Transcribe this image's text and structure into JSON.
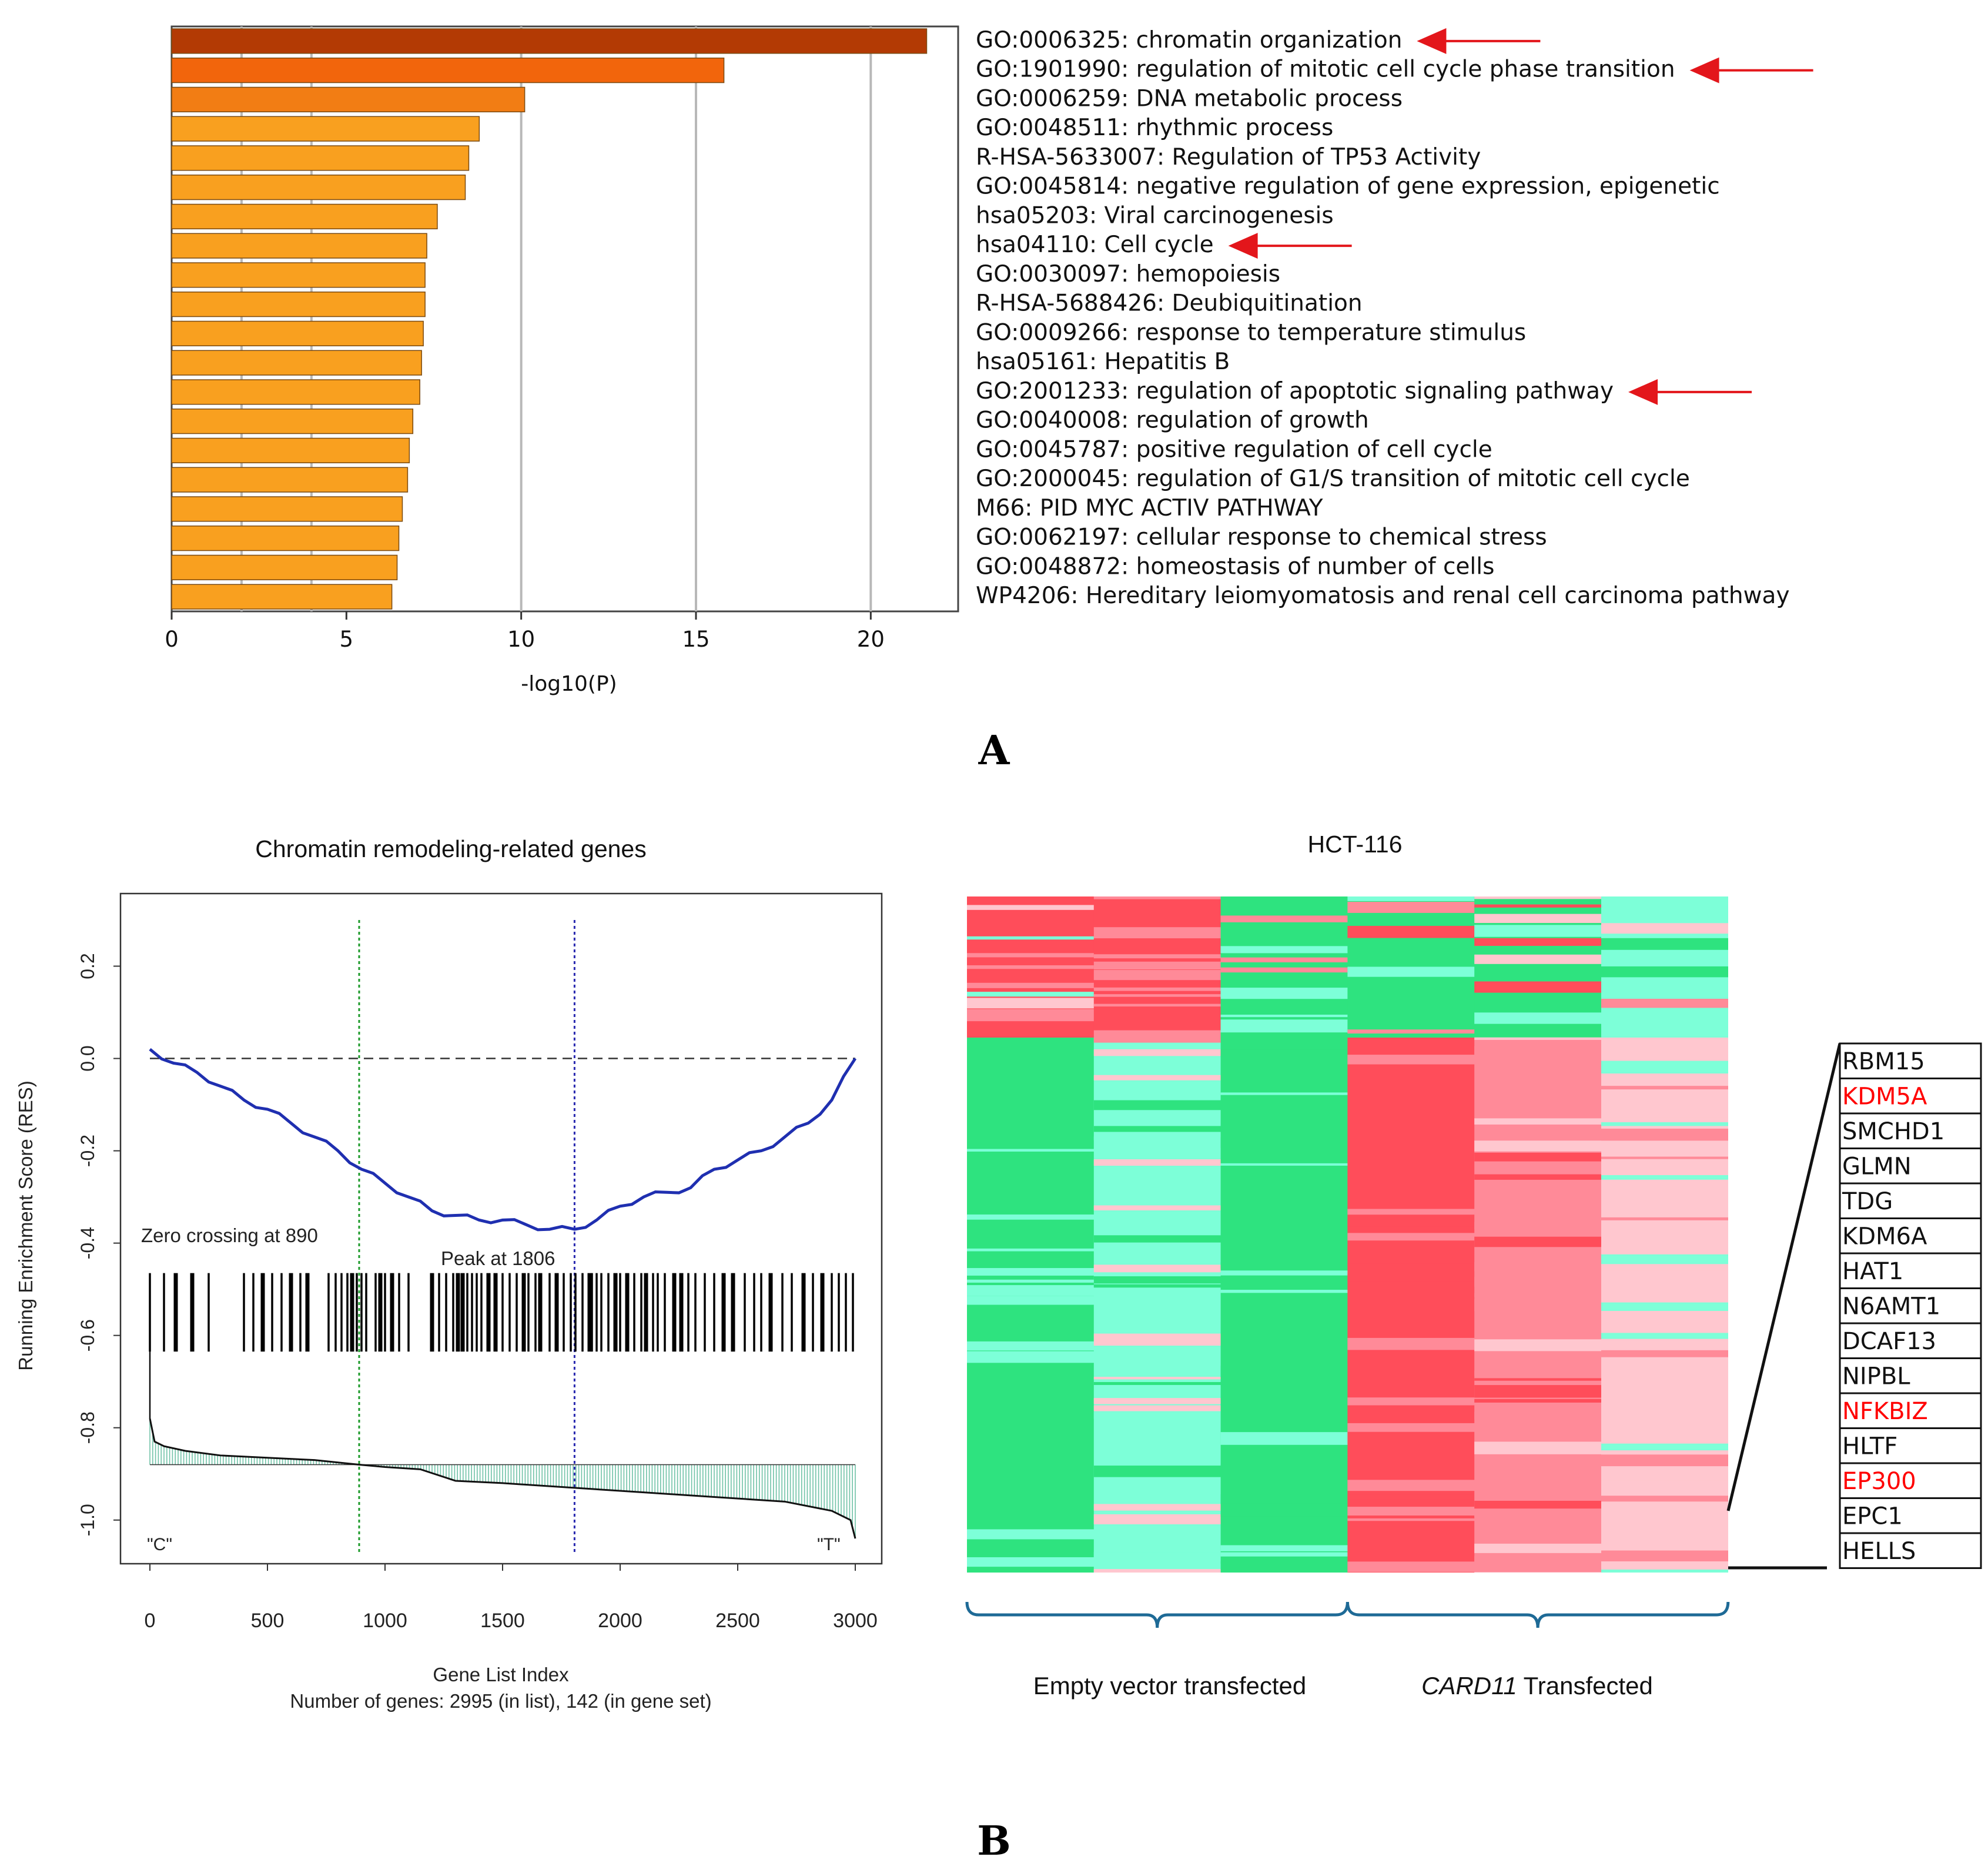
{
  "panel_labels": {
    "a": "A",
    "b": "B"
  },
  "chart_data": [
    {
      "type": "bar",
      "orientation": "horizontal",
      "title": "",
      "xlabel": "-log10(P)",
      "xlim": [
        0,
        22.5
      ],
      "xticks": [
        0,
        5,
        10,
        15,
        20
      ],
      "grid": "vertical",
      "categories": [
        "GO:0006325: chromatin organization",
        "GO:1901990: regulation of mitotic cell cycle phase transition",
        "GO:0006259: DNA metabolic process",
        "GO:0048511: rhythmic process",
        "R-HSA-5633007: Regulation of TP53 Activity",
        "GO:0045814: negative regulation of gene expression, epigenetic",
        "hsa05203: Viral carcinogenesis",
        "hsa04110: Cell cycle",
        "GO:0030097: hemopoiesis",
        "R-HSA-5688426: Deubiquitination",
        "GO:0009266: response to temperature stimulus",
        "hsa05161: Hepatitis B",
        "GO:2001233: regulation of apoptotic signaling pathway",
        "GO:0040008: regulation of growth",
        "GO:0045787: positive regulation of cell cycle",
        "GO:2000045: regulation of G1/S transition of mitotic cell cycle",
        "M66: PID MYC ACTIV PATHWAY",
        "GO:0062197: cellular response to chemical stress",
        "GO:0048872: homeostasis of number of cells",
        "WP4206: Hereditary leiomyomatosis and renal cell carcinoma pathway"
      ],
      "values": [
        21.6,
        15.8,
        10.1,
        8.8,
        8.5,
        8.4,
        7.6,
        7.3,
        7.25,
        7.25,
        7.2,
        7.15,
        7.1,
        6.9,
        6.8,
        6.75,
        6.6,
        6.5,
        6.45,
        6.3
      ],
      "bar_colors": [
        "#b33a04",
        "#f2650c",
        "#f27d14",
        "#f9a01f",
        "#f9a01f",
        "#f9a01f",
        "#f9a01f",
        "#f9a01f",
        "#f9a01f",
        "#f9a01f",
        "#f9a01f",
        "#f9a01f",
        "#f9a01f",
        "#f9a01f",
        "#f9a01f",
        "#f9a01f",
        "#f9a01f",
        "#f9a01f",
        "#f9a01f",
        "#f9a01f"
      ],
      "arrows_on": [
        0,
        1,
        7,
        12
      ],
      "arrow_color": "#e3161b"
    },
    {
      "type": "line",
      "title": "Chromatin remodeling-related genes",
      "xlabel": "Gene List Index",
      "ylabel": "Running Enrichment Score (RES)",
      "note": "Number of genes: 2995 (in list), 142 (in gene set)",
      "xlim": [
        0,
        3000
      ],
      "ylim": [
        -1.05,
        0.3
      ],
      "xticks": [
        0,
        500,
        1000,
        1500,
        2000,
        2500,
        3000
      ],
      "yticks": [
        0.2,
        0.0,
        -0.2,
        -0.4,
        -0.6,
        -0.8,
        -1.0
      ],
      "ytick_labels": [
        "0.2",
        "0.0",
        "-0.2",
        "-0.4",
        "-0.6",
        "-0.8",
        "-1.0"
      ],
      "annotations": {
        "zero_crossing": "Zero crossing at 890",
        "peak": "Peak at 1806",
        "left_end": "\"C\"",
        "right_end": "\"T\""
      },
      "zero_crossing_x": 890,
      "peak_x": 1806,
      "res_curve": {
        "x": [
          0,
          100,
          200,
          300,
          400,
          500,
          600,
          700,
          800,
          900,
          1000,
          1100,
          1200,
          1300,
          1400,
          1500,
          1600,
          1700,
          1806,
          1900,
          2000,
          2100,
          2200,
          2300,
          2400,
          2500,
          2600,
          2700,
          2800,
          2900,
          3000
        ],
        "y": [
          0.02,
          -0.01,
          -0.03,
          -0.06,
          -0.09,
          -0.11,
          -0.14,
          -0.17,
          -0.2,
          -0.24,
          -0.27,
          -0.3,
          -0.33,
          -0.34,
          -0.35,
          -0.35,
          -0.36,
          -0.37,
          -0.37,
          -0.35,
          -0.32,
          -0.3,
          -0.29,
          -0.28,
          -0.24,
          -0.22,
          -0.2,
          -0.17,
          -0.14,
          -0.09,
          0.0
        ]
      },
      "gene_set_hits": [
        0,
        60,
        110,
        180,
        250,
        400,
        440,
        480,
        520,
        560,
        600,
        640,
        670,
        760,
        790,
        815,
        840,
        860,
        880,
        900,
        920,
        960,
        980,
        1000,
        1030,
        1060,
        1100,
        1200,
        1230,
        1260,
        1290,
        1310,
        1330,
        1350,
        1370,
        1390,
        1410,
        1440,
        1470,
        1500,
        1530,
        1560,
        1590,
        1610,
        1640,
        1660,
        1700,
        1730,
        1760,
        1790,
        1810,
        1840,
        1870,
        1880,
        1900,
        1920,
        1950,
        1980,
        2000,
        2030,
        2060,
        2090,
        2110,
        2140,
        2160,
        2190,
        2230,
        2260,
        2290,
        2320,
        2360,
        2400,
        2440,
        2480,
        2530,
        2570,
        2600,
        2640,
        2690,
        2730,
        2780,
        2820,
        2860,
        2900,
        2930,
        2960,
        2990
      ],
      "ranked_metric": {
        "x": [
          0,
          20,
          60,
          150,
          300,
          500,
          700,
          890,
          1000,
          1150,
          1300,
          1500,
          1800,
          2100,
          2400,
          2700,
          2900,
          2980,
          3000
        ],
        "y": [
          -0.78,
          -0.83,
          -0.84,
          -0.85,
          -0.86,
          -0.865,
          -0.87,
          -0.88,
          -0.885,
          -0.89,
          -0.915,
          -0.92,
          -0.93,
          -0.94,
          -0.95,
          -0.96,
          -0.98,
          -1.0,
          -1.04
        ]
      }
    },
    {
      "type": "heatmap",
      "title": "HCT-116",
      "columns": 6,
      "column_groups": [
        {
          "label": "Empty vector transfected",
          "italic_prefix": "",
          "columns": [
            0,
            1,
            2
          ]
        },
        {
          "label": " Transfected",
          "italic_prefix": "CARD11",
          "columns": [
            3,
            4,
            5
          ]
        }
      ],
      "colors": {
        "high": "#ff4d5a",
        "mid_high": "#ff8a98",
        "low_pink": "#ffc7cf",
        "mid_low": "#7dffd8",
        "low": "#2ee37f"
      },
      "gene_labels": [
        "RBM15",
        "KDM5A",
        "SMCHD1",
        "GLMN",
        "TDG",
        "KDM6A",
        "HAT1",
        "N6AMT1",
        "DCAF13",
        "NIPBL",
        "NFKBIZ",
        "HLTF",
        "EP300",
        "EPC1",
        "HELLS"
      ],
      "highlighted_genes": [
        "KDM5A",
        "NFKBIZ",
        "EP300"
      ],
      "highlight_color": "#ff0000"
    }
  ]
}
